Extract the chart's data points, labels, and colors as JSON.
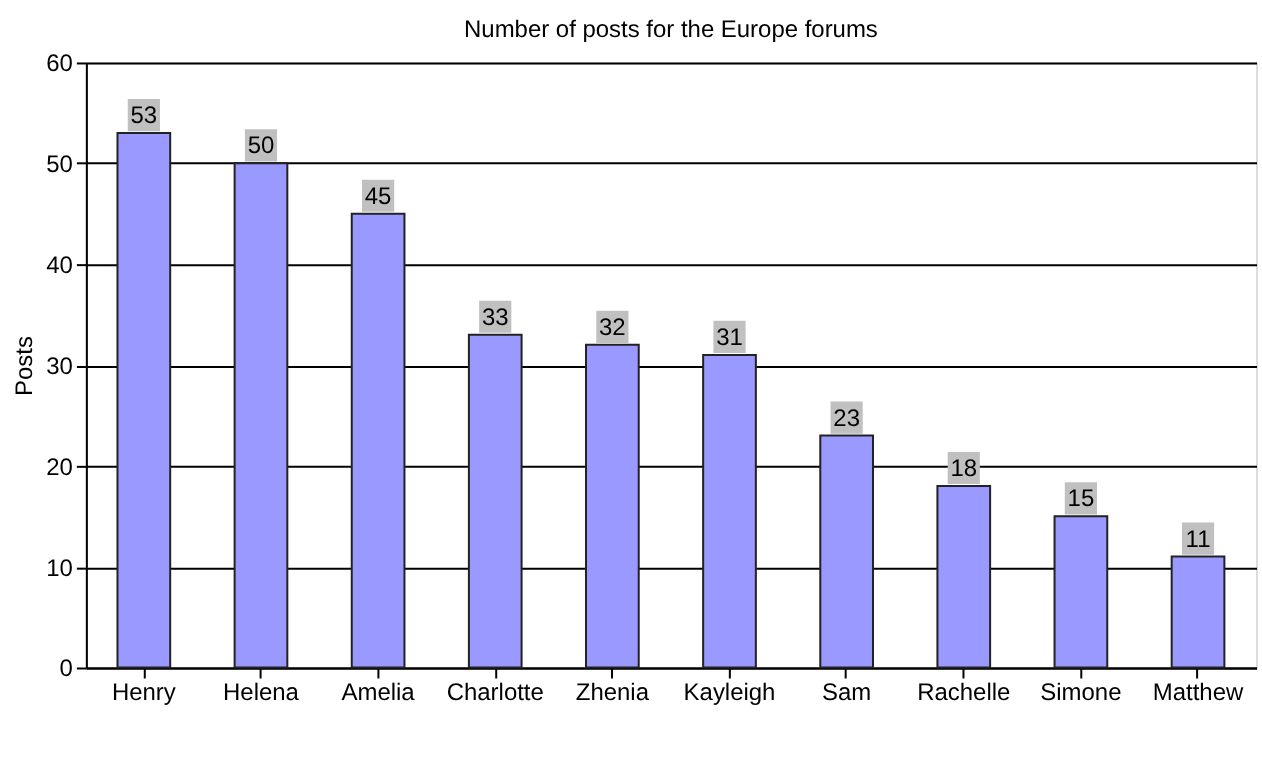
{
  "chart_data": {
    "type": "bar",
    "title": "Number of posts for the Europe forums",
    "ylabel": "Posts",
    "categories": [
      "Henry",
      "Helena",
      "Amelia",
      "Charlotte",
      "Zhenia",
      "Kayleigh",
      "Sam",
      "Rachelle",
      "Simone",
      "Matthew"
    ],
    "values": [
      53,
      50,
      45,
      33,
      32,
      31,
      23,
      18,
      15,
      11
    ],
    "color": "#9999ff",
    "ylim": [
      0,
      60
    ],
    "yticks": [
      0,
      10,
      20,
      30,
      40,
      50,
      60
    ],
    "grid": "y",
    "data_labels": true
  }
}
